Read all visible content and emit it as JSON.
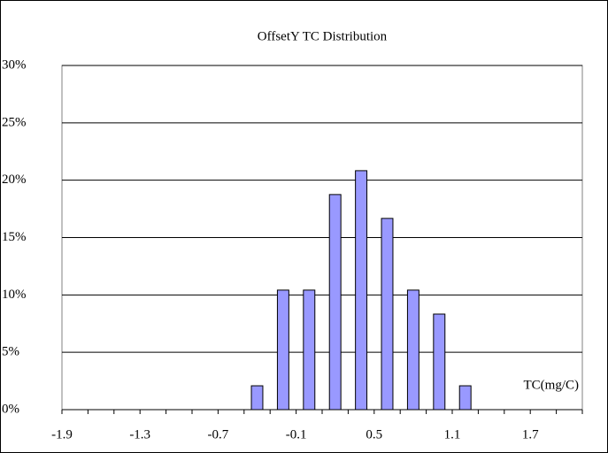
{
  "chart_data": {
    "type": "bar",
    "title": "OffsetY TC Distribution",
    "x_label": "TC(mg/C)",
    "categories": [
      "-1.9",
      null,
      null,
      "-1.3",
      null,
      null,
      "-0.7",
      null,
      null,
      "-0.1",
      null,
      null,
      "0.5",
      null,
      null,
      "1.1",
      null,
      null,
      "1.7",
      null
    ],
    "values": [
      0,
      0,
      0,
      0,
      0,
      0,
      0,
      2.08,
      10.42,
      10.42,
      18.75,
      20.83,
      16.67,
      10.42,
      8.33,
      2.08,
      0,
      0,
      0,
      0
    ],
    "color": "#9999ff",
    "ylim": [
      0,
      30
    ],
    "yticks": [
      {
        "value": 0,
        "label": "0%"
      },
      {
        "value": 5,
        "label": "5%"
      },
      {
        "value": 10,
        "label": "10%"
      },
      {
        "value": 15,
        "label": "15%"
      },
      {
        "value": 20,
        "label": "20%"
      },
      {
        "value": 25,
        "label": "25%"
      },
      {
        "value": 30,
        "label": "30%"
      }
    ],
    "grid": true
  }
}
